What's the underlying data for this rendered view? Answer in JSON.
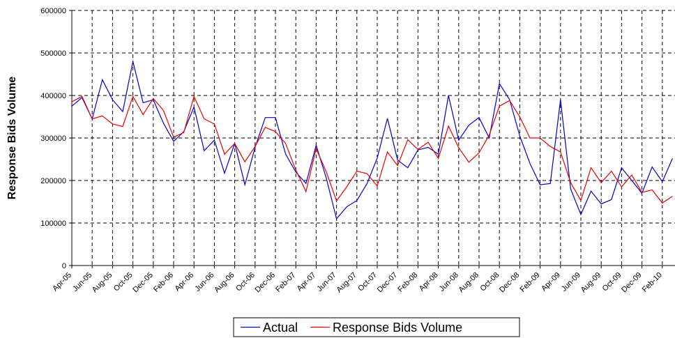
{
  "chart_data": {
    "type": "line",
    "y_label": "Response Bids Volume",
    "categories": [
      "Apr-05",
      null,
      "Jun-05",
      null,
      "Aug-05",
      null,
      "Oct-05",
      null,
      "Dec-05",
      null,
      "Feb-06",
      null,
      "Apr-06",
      null,
      "Jun-06",
      null,
      "Aug-06",
      null,
      "Oct-06",
      null,
      "Dec-06",
      null,
      "Feb-07",
      null,
      "Apr-07",
      null,
      "Jun-07",
      null,
      "Aug-07",
      null,
      "Oct-07",
      null,
      "Dec-07",
      null,
      "Feb-08",
      null,
      "Apr-08",
      null,
      "Jun-08",
      null,
      "Aug-08",
      null,
      "Oct-08",
      null,
      "Dec-08",
      null,
      "Feb-09",
      null,
      "Apr-09",
      null,
      "Jun-09",
      null,
      "Aug-09",
      null,
      "Oct-09",
      null,
      "Dec-09",
      null,
      "Feb-10",
      null
    ],
    "series": [
      {
        "name": "Actual",
        "color": "#0000cc",
        "values": [
          375000,
          395000,
          345000,
          437000,
          390000,
          362000,
          480000,
          383000,
          390000,
          335000,
          292000,
          315000,
          373000,
          270000,
          295000,
          217000,
          287000,
          190000,
          278000,
          348000,
          348000,
          262000,
          220000,
          193000,
          283000,
          205000,
          110000,
          138000,
          153000,
          193000,
          253000,
          346000,
          248000,
          230000,
          272000,
          278000,
          262000,
          400000,
          295000,
          330000,
          348000,
          300000,
          428000,
          390000,
          305000,
          240000,
          190000,
          193000,
          390000,
          180000,
          120000,
          175000,
          145000,
          155000,
          230000,
          200000,
          170000,
          232000,
          197000,
          252000
        ]
      },
      {
        "name": "Response Bids Volume",
        "color": "#ee0000",
        "values": [
          385000,
          398000,
          345000,
          352000,
          333000,
          327000,
          398000,
          355000,
          393000,
          365000,
          302000,
          313000,
          398000,
          345000,
          333000,
          262000,
          287000,
          244000,
          280000,
          325000,
          315000,
          287000,
          225000,
          174000,
          275000,
          220000,
          152000,
          185000,
          222000,
          216000,
          187000,
          267000,
          235000,
          296000,
          273000,
          290000,
          252000,
          328000,
          277000,
          243000,
          265000,
          307000,
          375000,
          388000,
          350000,
          300000,
          300000,
          280000,
          267000,
          195000,
          153000,
          230000,
          195000,
          222000,
          185000,
          213000,
          172000,
          178000,
          147000,
          163000
        ]
      }
    ],
    "ylim": [
      0,
      600000
    ],
    "yticks": [
      0,
      100000,
      200000,
      300000,
      400000,
      500000,
      600000
    ],
    "grid": true,
    "legend": "bottom"
  }
}
